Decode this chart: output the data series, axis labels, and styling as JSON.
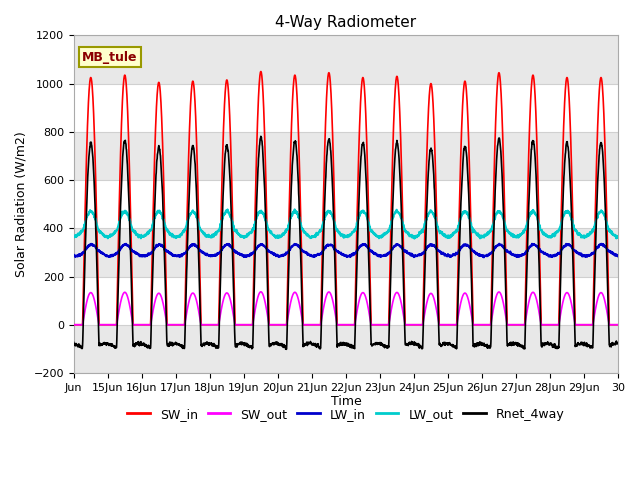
{
  "title": "4-Way Radiometer",
  "xlabel": "Time",
  "ylabel": "Solar Radiation (W/m2)",
  "annotation": "MB_tule",
  "ylim": [
    -200,
    1200
  ],
  "xlim_days": [
    14,
    30
  ],
  "x_tick_positions": [
    14,
    15,
    16,
    17,
    18,
    19,
    20,
    21,
    22,
    23,
    24,
    25,
    26,
    27,
    28,
    29,
    30
  ],
  "x_tick_labels": [
    "Jun",
    "15Jun",
    "16Jun",
    "17Jun",
    "18Jun",
    "19Jun",
    "20Jun",
    "21Jun",
    "22Jun",
    "23Jun",
    "24Jun",
    "25Jun",
    "26Jun",
    "27Jun",
    "28Jun",
    "29Jun",
    "30"
  ],
  "y_ticks": [
    -200,
    0,
    200,
    400,
    600,
    800,
    1000,
    1200
  ],
  "colors": {
    "SW_in": "#ff0000",
    "SW_out": "#ff00ff",
    "LW_in": "#0000cc",
    "LW_out": "#00cccc",
    "Rnet_4way": "#000000"
  },
  "fig_bg_color": "#ffffff",
  "plot_bg_color": "#ffffff",
  "grid_color": "#d0d0d0",
  "annotation_fg": "#8b0000",
  "annotation_bg": "#ffffcc",
  "annotation_edge": "#999900",
  "title_fontsize": 11,
  "axis_label_fontsize": 9,
  "tick_fontsize": 8,
  "legend_fontsize": 9,
  "lw_sw_in": 1.2,
  "lw_sw_out": 1.2,
  "lw_lw_in": 1.5,
  "lw_lw_out": 1.5,
  "lw_rnet": 1.2
}
